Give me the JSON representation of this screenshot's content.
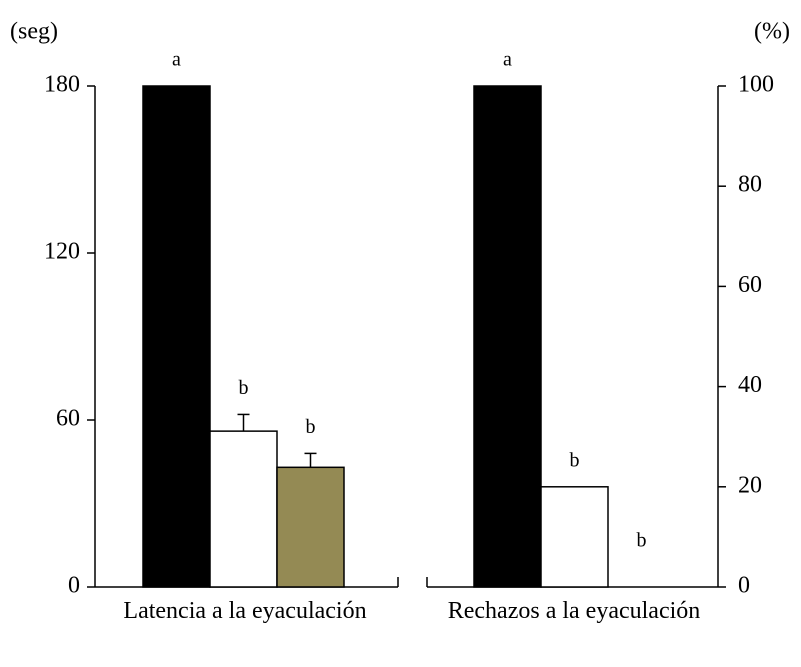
{
  "chart_data": [
    {
      "type": "bar",
      "ylabel": "(seg)",
      "ylim": [
        0,
        180
      ],
      "yticks": [
        0,
        60,
        120,
        180
      ],
      "categories": [
        "Latencia a la eyaculación"
      ],
      "series": [
        {
          "color": "#000000",
          "values": [
            180
          ],
          "errors": [
            null
          ],
          "letters": [
            "a"
          ]
        },
        {
          "color": "#ffffff",
          "values": [
            56
          ],
          "errors": [
            6
          ],
          "letters": [
            "b"
          ]
        },
        {
          "color": "#948a54",
          "values": [
            43
          ],
          "errors": [
            5
          ],
          "letters": [
            "b"
          ]
        }
      ]
    },
    {
      "type": "bar",
      "y2label": "(%)",
      "y2lim": [
        0,
        100
      ],
      "y2ticks": [
        0,
        20,
        40,
        60,
        80,
        100
      ],
      "categories": [
        "Rechazos a la eyaculación"
      ],
      "series": [
        {
          "axis": "y2",
          "color": "#000000",
          "values": [
            100
          ],
          "letters": [
            "a"
          ]
        },
        {
          "axis": "y2",
          "color": "#ffffff",
          "values": [
            20
          ],
          "letters": [
            "b"
          ]
        },
        {
          "axis": "y2",
          "color": "#948a54",
          "values": [
            0
          ],
          "letters": [
            "b"
          ]
        }
      ]
    }
  ]
}
